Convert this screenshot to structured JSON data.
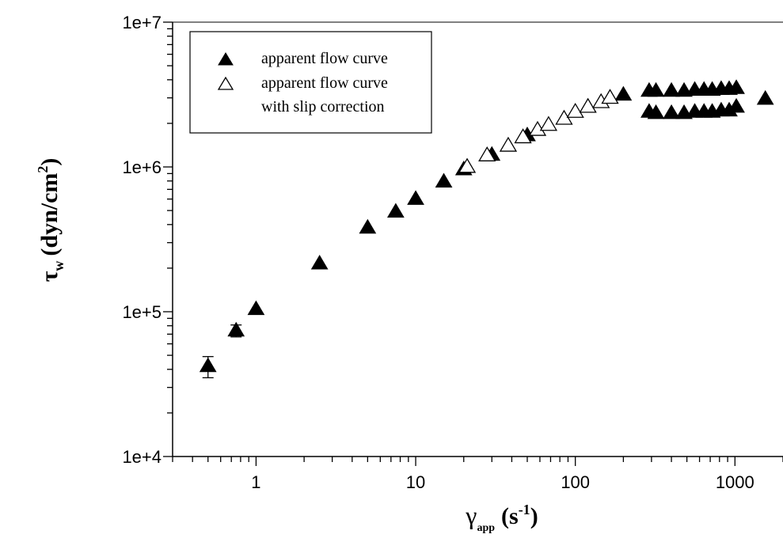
{
  "chart_data": {
    "type": "scatter",
    "x_scale": "log",
    "y_scale": "log",
    "xlim": [
      0.3,
      2000
    ],
    "ylim": [
      10000,
      10000000
    ],
    "grid": false,
    "legend_position": "top-left",
    "x_ticks": [
      {
        "value": 1,
        "label": "1"
      },
      {
        "value": 10,
        "label": "10"
      },
      {
        "value": 100,
        "label": "100"
      },
      {
        "value": 1000,
        "label": "1000"
      }
    ],
    "y_ticks": [
      {
        "value": 10000,
        "label": "1e+4"
      },
      {
        "value": 100000,
        "label": "1e+5"
      },
      {
        "value": 1000000,
        "label": "1e+6"
      },
      {
        "value": 10000000,
        "label": "1e+7"
      }
    ],
    "xlabel": {
      "symbol": "γ",
      "subscript": "app",
      "unit": "(s",
      "exponent": "-1",
      "close": ")"
    },
    "ylabel": {
      "symbol": "τ",
      "subscript": "w",
      "unit": "(dyn/cm",
      "exponent": "2",
      "close": ")"
    },
    "series": [
      {
        "name": "apparent flow curve",
        "marker": "filled-triangle",
        "color": "#000000",
        "points": [
          {
            "x": 0.5,
            "y": 42000,
            "err": 7000
          },
          {
            "x": 0.75,
            "y": 74000,
            "err": 7000
          },
          {
            "x": 1.0,
            "y": 104000
          },
          {
            "x": 2.5,
            "y": 215000
          },
          {
            "x": 5.0,
            "y": 380000
          },
          {
            "x": 7.5,
            "y": 490000
          },
          {
            "x": 10.0,
            "y": 600000
          },
          {
            "x": 15.0,
            "y": 790000
          },
          {
            "x": 20.0,
            "y": 960000
          },
          {
            "x": 30.0,
            "y": 1210000
          },
          {
            "x": 50.0,
            "y": 1650000
          },
          {
            "x": 200.0,
            "y": 3150000
          },
          {
            "x": 290.0,
            "y": 3350000
          },
          {
            "x": 320.0,
            "y": 3350000
          },
          {
            "x": 400.0,
            "y": 3350000
          },
          {
            "x": 480.0,
            "y": 3350000
          },
          {
            "x": 560.0,
            "y": 3400000
          },
          {
            "x": 640.0,
            "y": 3400000
          },
          {
            "x": 720.0,
            "y": 3400000
          },
          {
            "x": 820.0,
            "y": 3450000
          },
          {
            "x": 920.0,
            "y": 3450000
          },
          {
            "x": 1020.0,
            "y": 3500000
          },
          {
            "x": 290.0,
            "y": 2400000
          },
          {
            "x": 320.0,
            "y": 2350000
          },
          {
            "x": 400.0,
            "y": 2350000
          },
          {
            "x": 480.0,
            "y": 2350000
          },
          {
            "x": 560.0,
            "y": 2400000
          },
          {
            "x": 640.0,
            "y": 2400000
          },
          {
            "x": 720.0,
            "y": 2400000
          },
          {
            "x": 820.0,
            "y": 2450000
          },
          {
            "x": 920.0,
            "y": 2450000
          },
          {
            "x": 1020.0,
            "y": 2600000
          },
          {
            "x": 1550.0,
            "y": 2950000
          }
        ]
      },
      {
        "name": "apparent flow curve\nwith slip correction",
        "marker": "open-triangle",
        "color": "#000000",
        "points": [
          {
            "x": 21.0,
            "y": 1000000
          },
          {
            "x": 28.0,
            "y": 1200000
          },
          {
            "x": 38.0,
            "y": 1400000
          },
          {
            "x": 47.0,
            "y": 1600000
          },
          {
            "x": 58.0,
            "y": 1800000
          },
          {
            "x": 68.0,
            "y": 1950000
          },
          {
            "x": 85.0,
            "y": 2150000
          },
          {
            "x": 100.0,
            "y": 2400000
          },
          {
            "x": 120.0,
            "y": 2600000
          },
          {
            "x": 145.0,
            "y": 2800000
          },
          {
            "x": 165.0,
            "y": 3000000
          }
        ]
      }
    ]
  }
}
